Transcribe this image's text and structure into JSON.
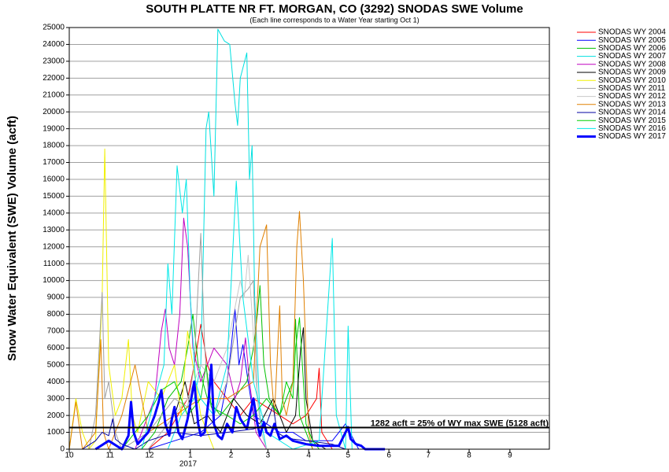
{
  "chart_data": {
    "type": "line",
    "title": "SOUTH PLATTE NR FT. MORGAN, CO (3292) SNODAS SWE Volume",
    "subtitle": "(Each line corresponds to a Water Year starting Oct 1)",
    "y_label": "Snow Water Equivalent (SWE) Volume (acft)",
    "x_year_label": "2017",
    "xlim": [
      0,
      365
    ],
    "xticks": [
      {
        "value": 0,
        "label": "10"
      },
      {
        "value": 31,
        "label": "11"
      },
      {
        "value": 61,
        "label": "12"
      },
      {
        "value": 92,
        "label": "1"
      },
      {
        "value": 123,
        "label": "2"
      },
      {
        "value": 151,
        "label": "3"
      },
      {
        "value": 182,
        "label": "4"
      },
      {
        "value": 212,
        "label": "5"
      },
      {
        "value": 243,
        "label": "6"
      },
      {
        "value": 273,
        "label": "7"
      },
      {
        "value": 304,
        "label": "8"
      },
      {
        "value": 335,
        "label": "9"
      }
    ],
    "ylim": [
      0,
      25000
    ],
    "yticks": [
      0,
      1000,
      2000,
      3000,
      4000,
      5000,
      6000,
      7000,
      8000,
      9000,
      10000,
      11000,
      12000,
      13000,
      14000,
      15000,
      16000,
      17000,
      18000,
      19000,
      20000,
      21000,
      22000,
      23000,
      24000,
      25000
    ],
    "grid": true,
    "threshold": {
      "value": 1282,
      "label": "1282 acft = 25% of WY max SWE (5128 acft)"
    },
    "series": [
      {
        "name": "SNODAS WY 2004",
        "color": "#ff0000",
        "x": [
          60,
          75,
          90,
          95,
          100,
          105,
          110,
          120,
          130,
          140,
          150,
          160,
          170,
          180,
          188,
          190,
          192,
          200
        ],
        "values": [
          0,
          1000,
          3000,
          5000,
          7400,
          5000,
          4000,
          3000,
          2000,
          3000,
          2500,
          2000,
          1500,
          2000,
          3000,
          4800,
          1000,
          0
        ]
      },
      {
        "name": "SNODAS WY 2005",
        "color": "#0000ff",
        "x": [
          60,
          80,
          100,
          115,
          120,
          123,
          126,
          129,
          132,
          136,
          140,
          150,
          160,
          170,
          180,
          190,
          200,
          210,
          220
        ],
        "values": [
          0,
          500,
          1000,
          2000,
          4000,
          6000,
          8300,
          5000,
          6200,
          4000,
          2000,
          1500,
          1000,
          1000,
          500,
          500,
          500,
          1500,
          0
        ]
      },
      {
        "name": "SNODAS WY 2006",
        "color": "#00c000",
        "x": [
          55,
          65,
          75,
          85,
          90,
          94,
          98,
          105,
          115,
          125,
          135,
          140,
          143,
          145,
          148,
          152,
          160,
          170,
          172,
          175,
          180,
          185
        ],
        "values": [
          0,
          1000,
          3000,
          4000,
          6000,
          8000,
          5000,
          3000,
          2000,
          3000,
          4000,
          6000,
          8000,
          9700,
          5000,
          3000,
          2000,
          4000,
          7700,
          2000,
          1000,
          0
        ]
      },
      {
        "name": "SNODAS WY 2007",
        "color": "#00e0e0",
        "x": [
          75,
          85,
          95,
          100,
          104,
          106,
          110,
          113,
          118,
          122,
          126,
          128,
          130,
          135,
          137,
          139,
          141,
          145,
          150
        ],
        "values": [
          0,
          2000,
          3000,
          5000,
          19000,
          20000,
          15000,
          24900,
          24200,
          24000,
          20500,
          19200,
          22000,
          23500,
          16000,
          18000,
          9000,
          2000,
          0
        ]
      },
      {
        "name": "SNODAS WY 2008",
        "color": "#c000c0",
        "x": [
          50,
          60,
          65,
          70,
          73,
          76,
          80,
          84,
          87,
          90,
          94,
          100,
          110,
          120,
          126,
          130,
          134,
          137,
          142,
          150
        ],
        "values": [
          0,
          2000,
          3000,
          7000,
          8300,
          6000,
          5000,
          8000,
          13700,
          12000,
          6000,
          4000,
          6000,
          5000,
          3000,
          4000,
          6600,
          4000,
          1000,
          0
        ]
      },
      {
        "name": "SNODAS WY 2009",
        "color": "#000000",
        "x": [
          60,
          70,
          80,
          84,
          88,
          95,
          105,
          115,
          125,
          135,
          145,
          155,
          165,
          172,
          176,
          178,
          180,
          185,
          195
        ],
        "values": [
          0,
          1000,
          2000,
          3000,
          4000,
          1500,
          2000,
          1000,
          3000,
          2000,
          1500,
          3000,
          1000,
          2000,
          6000,
          7200,
          3000,
          500,
          0
        ]
      },
      {
        "name": "SNODAS WY 2010",
        "color": "#f0f000",
        "x": [
          0,
          5,
          10,
          15,
          20,
          25,
          27,
          30,
          35,
          40,
          45,
          48,
          52,
          60,
          70,
          80,
          85,
          90,
          100,
          110
        ],
        "values": [
          0,
          3000,
          1000,
          0,
          500,
          9000,
          17800,
          5000,
          2000,
          3000,
          6500,
          2000,
          1000,
          4000,
          3000,
          5000,
          2000,
          7000,
          2000,
          0
        ]
      },
      {
        "name": "SNODAS WY 2011",
        "color": "#a0a0a0",
        "x": [
          15,
          20,
          25,
          27,
          30,
          35,
          40,
          50,
          60,
          70,
          80,
          90,
          95,
          100,
          103,
          106,
          110,
          120,
          130,
          136,
          140,
          143,
          146,
          150
        ],
        "values": [
          0,
          2000,
          9300,
          3000,
          4000,
          1000,
          0,
          500,
          1000,
          2000,
          3000,
          2500,
          5000,
          12800,
          6000,
          3000,
          2000,
          4000,
          9000,
          9500,
          10000,
          3000,
          1000,
          0
        ]
      },
      {
        "name": "SNODAS WY 2012",
        "color": "#c8c8c8",
        "x": [
          60,
          70,
          80,
          90,
          100,
          110,
          120,
          125,
          130,
          133,
          136,
          139,
          142,
          146,
          150,
          160
        ],
        "values": [
          0,
          1000,
          2000,
          3000,
          5000,
          4000,
          6000,
          8000,
          10000,
          9000,
          11500,
          8000,
          4000,
          1000,
          0,
          0
        ]
      },
      {
        "name": "SNODAS WY 2013",
        "color": "#e08000",
        "x": [
          0,
          5,
          10,
          20,
          24,
          26,
          30,
          40,
          50,
          60,
          80,
          100,
          120,
          140,
          145,
          150,
          153,
          156,
          160,
          162,
          165,
          170,
          173,
          175,
          178,
          182,
          185
        ],
        "values": [
          0,
          2800,
          0,
          1000,
          6500,
          1000,
          0,
          2000,
          5000,
          1000,
          2000,
          3000,
          3000,
          4000,
          12000,
          13300,
          5000,
          2000,
          8500,
          3000,
          2000,
          4000,
          12000,
          14100,
          10000,
          1000,
          0
        ]
      },
      {
        "name": "SNODAS WY 2014",
        "color": "#0000a0",
        "x": [
          10,
          20,
          25,
          30,
          33,
          35,
          40,
          50,
          60,
          80,
          100,
          120,
          140,
          150,
          155,
          158,
          162,
          170,
          180,
          190,
          200,
          210
        ],
        "values": [
          0,
          500,
          1000,
          800,
          1800,
          600,
          300,
          0,
          500,
          1000,
          800,
          1000,
          1200,
          1500,
          2600,
          1000,
          800,
          600,
          500,
          400,
          300,
          0
        ]
      },
      {
        "name": "SNODAS WY 2015",
        "color": "#00d000",
        "x": [
          40,
          50,
          60,
          70,
          80,
          90,
          100,
          104,
          108,
          120,
          130,
          140,
          150,
          160,
          165,
          170,
          172,
          175,
          178,
          180,
          185,
          190
        ],
        "values": [
          0,
          1000,
          2000,
          3500,
          4000,
          2000,
          3000,
          5000,
          2500,
          2000,
          1500,
          2000,
          3000,
          2000,
          4000,
          3000,
          6000,
          7800,
          4000,
          1500,
          500,
          0
        ]
      },
      {
        "name": "SNODAS WY 2016",
        "color": "#00e8e8",
        "x": [
          55,
          65,
          72,
          75,
          78,
          82,
          86,
          89,
          92,
          96,
          100,
          110,
          120,
          127,
          132,
          140,
          150,
          170,
          190,
          200,
          203,
          210,
          212,
          215
        ],
        "values": [
          0,
          3000,
          5000,
          11000,
          8000,
          16800,
          14000,
          16000,
          9000,
          4000,
          3000,
          2000,
          5000,
          15900,
          9000,
          4000,
          1000,
          0,
          500,
          12500,
          2000,
          0,
          7300,
          0
        ]
      },
      {
        "name": "SNODAS WY 2017",
        "color": "#0000ff",
        "line_width": 3,
        "x": [
          20,
          30,
          40,
          45,
          47,
          49,
          52,
          60,
          65,
          68,
          70,
          73,
          76,
          78,
          80,
          83,
          86,
          88,
          90,
          95,
          98,
          100,
          103,
          106,
          108,
          110,
          113,
          116,
          120,
          124,
          127,
          130,
          135,
          140,
          143,
          145,
          148,
          150,
          153,
          156,
          160,
          165,
          170,
          175,
          180,
          190,
          200,
          205,
          210,
          212,
          214,
          218,
          222,
          225,
          240
        ],
        "values": [
          0,
          500,
          0,
          800,
          2800,
          1000,
          300,
          1000,
          2000,
          2800,
          3500,
          1500,
          800,
          1800,
          2500,
          1000,
          600,
          1200,
          1800,
          4000,
          1500,
          800,
          1000,
          3000,
          5000,
          1500,
          800,
          600,
          1500,
          1000,
          2500,
          1800,
          1200,
          3000,
          1500,
          800,
          1600,
          1000,
          800,
          1500,
          600,
          800,
          500,
          400,
          300,
          200,
          200,
          200,
          1000,
          1300,
          600,
          300,
          200,
          0,
          0
        ]
      }
    ]
  }
}
